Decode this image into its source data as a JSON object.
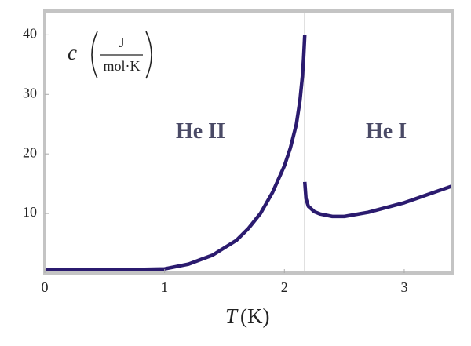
{
  "chart_data": {
    "type": "line",
    "xlabel": {
      "symbol": "T",
      "unit": "(K)"
    },
    "ylabel": {
      "symbol": "c",
      "numerator": "J",
      "denominator": "mol·K"
    },
    "annotations": [
      {
        "text": "He II",
        "x": 1.3,
        "y": 23.5
      },
      {
        "text": "He I",
        "x": 2.85,
        "y": 23.5
      }
    ],
    "lambda_point": 2.17,
    "series": [
      {
        "color": "#2b1b6f",
        "x": [
          0,
          0.5,
          1.0,
          1.2,
          1.4,
          1.6,
          1.7,
          1.8,
          1.9,
          2.0,
          2.05,
          2.1,
          2.13,
          2.15,
          2.16,
          2.17
        ],
        "values": [
          0.6,
          0.5,
          0.7,
          1.5,
          3.0,
          5.5,
          7.5,
          10,
          13.5,
          18,
          21,
          25,
          29,
          33,
          36,
          40
        ]
      },
      {
        "color": "#2b1b6f",
        "x": [
          2.17,
          2.18,
          2.2,
          2.25,
          2.3,
          2.4,
          2.5,
          2.7,
          3.0,
          3.2,
          3.4
        ],
        "values": [
          15.3,
          12.5,
          11.2,
          10.3,
          9.9,
          9.5,
          9.5,
          10.2,
          11.8,
          13.2,
          14.6
        ]
      }
    ],
    "xlim": [
      0,
      3.4
    ],
    "ylim": [
      0,
      44
    ],
    "xticks": [
      0,
      1,
      2,
      3
    ],
    "yticks": [
      10,
      20,
      30,
      40
    ]
  }
}
